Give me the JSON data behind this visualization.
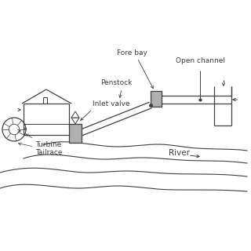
{
  "bg_color": "#ffffff",
  "line_color": "#404040",
  "gray_fill": "#b0b0b0",
  "labels": {
    "open_channel": "Open channel",
    "fore_bay": "Fore bay",
    "penstock": "Penstock",
    "inlet_valve": "Inlet valve",
    "turbine": "Turbine",
    "tailrace": "Tailrace",
    "river": "River"
  },
  "font_size": 6.5
}
